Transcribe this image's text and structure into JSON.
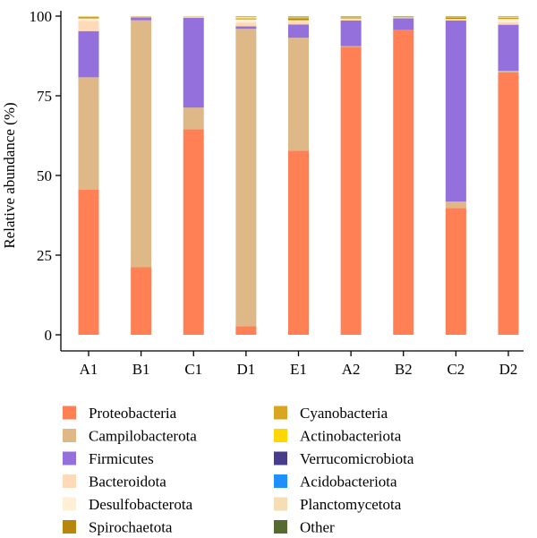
{
  "chart_data": {
    "type": "bar",
    "stacked": true,
    "title": "",
    "xlabel": "",
    "ylabel": "Relative abundance (%)",
    "ylim": [
      0,
      100
    ],
    "yticks": [
      0,
      25,
      50,
      75,
      100
    ],
    "grid": false,
    "legend_position": "bottom",
    "categories": [
      "A1",
      "B1",
      "C1",
      "D1",
      "E1",
      "A2",
      "B2",
      "C2",
      "D2"
    ],
    "series": [
      {
        "name": "Proteobacteria",
        "color": "#FF8055",
        "values": [
          45.5,
          21.2,
          64.5,
          2.7,
          57.8,
          90.3,
          95.5,
          39.8,
          82.3
        ]
      },
      {
        "name": "Campilobacterota",
        "color": "#DEB887",
        "values": [
          35.3,
          77.5,
          6.8,
          93.3,
          35.4,
          0.3,
          0.1,
          2.0,
          0.5
        ]
      },
      {
        "name": "Firmicutes",
        "color": "#9370DB",
        "values": [
          14.5,
          0.9,
          28.2,
          0.8,
          4.2,
          8.0,
          3.7,
          56.8,
          14.5
        ]
      },
      {
        "name": "Bacteroidota",
        "color": "#FFDAB9",
        "values": [
          3.2,
          0.2,
          0.2,
          1.2,
          1.0,
          0.5,
          0.1,
          0.3,
          0.8
        ]
      },
      {
        "name": "Desulfobacterota",
        "color": "#FFEFD5",
        "values": [
          0.8,
          0.1,
          0.1,
          1.0,
          0.3,
          0.2,
          0.2,
          0.2,
          1.0
        ]
      },
      {
        "name": "Spirochaetota",
        "color": "#B8860B",
        "values": [
          0.3,
          0.1,
          0.1,
          0.2,
          0.5,
          0.2,
          0.1,
          0.4,
          0.2
        ]
      },
      {
        "name": "Cyanobacteria",
        "color": "#DAA520",
        "values": [
          0.2,
          0.0,
          0.0,
          0.1,
          0.4,
          0.2,
          0.1,
          0.2,
          0.2
        ]
      },
      {
        "name": "Actinobacteriota",
        "color": "#FFD700",
        "values": [
          0.1,
          0.0,
          0.0,
          0.1,
          0.1,
          0.1,
          0.0,
          0.1,
          0.1
        ]
      },
      {
        "name": "Verrucomicrobiota",
        "color": "#483D8B",
        "values": [
          0.0,
          0.0,
          0.0,
          0.0,
          0.0,
          0.0,
          0.0,
          0.0,
          0.0
        ]
      },
      {
        "name": "Acidobacteriota",
        "color": "#1E90FF",
        "values": [
          0.0,
          0.0,
          0.0,
          0.0,
          0.0,
          0.0,
          0.0,
          0.0,
          0.0
        ]
      },
      {
        "name": "Planctomycetota",
        "color": "#F5DEB3",
        "values": [
          0.1,
          0.0,
          0.1,
          0.5,
          0.2,
          0.1,
          0.1,
          0.1,
          0.3
        ]
      },
      {
        "name": "Other",
        "color": "#556B2F",
        "values": [
          0.0,
          0.0,
          0.0,
          0.1,
          0.1,
          0.1,
          0.1,
          0.1,
          0.1
        ]
      }
    ],
    "legend_order": [
      "Proteobacteria",
      "Campilobacterota",
      "Firmicutes",
      "Bacteroidota",
      "Desulfobacterota",
      "Spirochaetota",
      "Cyanobacteria",
      "Actinobacteriota",
      "Verrucomicrobiota",
      "Acidobacteriota",
      "Planctomycetota",
      "Other"
    ]
  }
}
